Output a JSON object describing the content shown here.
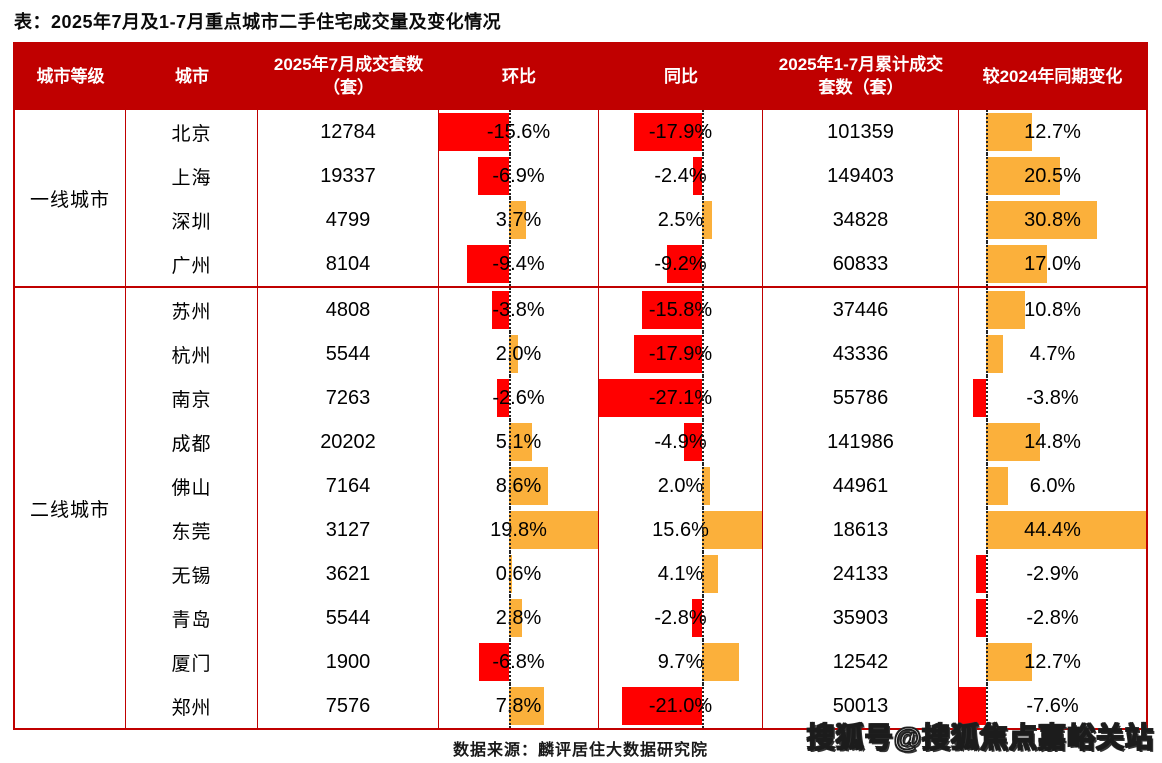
{
  "colors": {
    "header_red": "#C00000",
    "border_red": "#C00000",
    "negative_bar": "#FF0000",
    "positive_bar": "#FBB03B"
  },
  "source_note": "数据来源：麟评居住大数据研究院",
  "watermark": "搜狐号@搜狐焦点嘉峪关站",
  "chart_data": {
    "type": "table",
    "title": "表：2025年7月及1-7月重点城市二手住宅成交量及变化情况",
    "columns": [
      "城市等级",
      "城市",
      "2025年7月成交套数（套）",
      "环比",
      "同比",
      "2025年1-7月累计成交套数（套）",
      "较2024年同期变化"
    ],
    "bar_columns": [
      "环比",
      "同比",
      "较2024年同期变化"
    ],
    "bar_style": {
      "negative_color": "#FF0000",
      "positive_color": "#FBB03B",
      "unit": "%"
    },
    "sections": [
      {
        "tier": "一线城市",
        "rows": [
          [
            "北京",
            12784,
            -15.6,
            -17.9,
            101359,
            12.7
          ],
          [
            "上海",
            19337,
            -6.9,
            -2.4,
            149403,
            20.5
          ],
          [
            "深圳",
            4799,
            3.7,
            2.5,
            34828,
            30.8
          ],
          [
            "广州",
            8104,
            -9.4,
            -9.2,
            60833,
            17.0
          ]
        ]
      },
      {
        "tier": "二线城市",
        "rows": [
          [
            "苏州",
            4808,
            -3.8,
            -15.8,
            37446,
            10.8
          ],
          [
            "杭州",
            5544,
            2.0,
            -17.9,
            43336,
            4.7
          ],
          [
            "南京",
            7263,
            -2.6,
            -27.1,
            55786,
            -3.8
          ],
          [
            "成都",
            20202,
            5.1,
            -4.9,
            141986,
            14.8
          ],
          [
            "佛山",
            7164,
            8.6,
            2.0,
            44961,
            6.0
          ],
          [
            "东莞",
            3127,
            19.8,
            15.6,
            18613,
            44.4
          ],
          [
            "无锡",
            3621,
            0.6,
            4.1,
            24133,
            -2.9
          ],
          [
            "青岛",
            5544,
            2.8,
            -2.8,
            35903,
            -2.8
          ],
          [
            "厦门",
            1900,
            -6.8,
            9.7,
            12542,
            12.7
          ],
          [
            "郑州",
            7576,
            7.8,
            -21.0,
            50013,
            -7.6
          ]
        ]
      }
    ]
  }
}
